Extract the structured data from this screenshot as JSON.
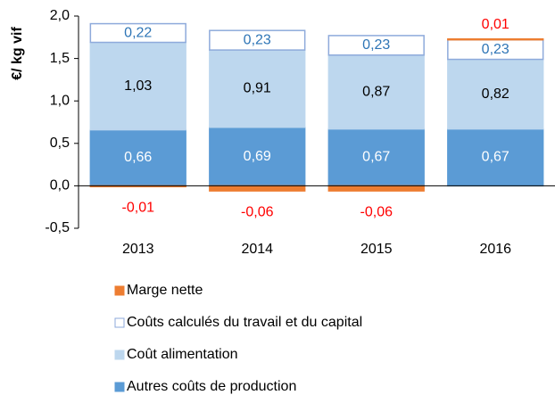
{
  "chart_data": {
    "type": "stacked_bar",
    "y_label": "€/ kg vif",
    "categories": [
      "2013",
      "2014",
      "2015",
      "2016"
    ],
    "ylim": [
      -0.5,
      2.0
    ],
    "yticks": [
      {
        "value": -0.5,
        "label": "-0,5"
      },
      {
        "value": 0,
        "label": "0,0"
      },
      {
        "value": 0.5,
        "label": "0,5"
      },
      {
        "value": 1.0,
        "label": "1,0"
      },
      {
        "value": 1.5,
        "label": "1,5"
      },
      {
        "value": 2.0,
        "label": "2,0"
      }
    ],
    "series": [
      {
        "name": "Autres coûts de production",
        "color": "#5b9bd5",
        "stroke": "#5b9bd5",
        "label_color": "#ffffff",
        "values": [
          0.66,
          0.69,
          0.67,
          0.67
        ],
        "value_labels": [
          "0,66",
          "0,69",
          "0,67",
          "0,67"
        ]
      },
      {
        "name": "Coût alimentation",
        "color": "#bdd7ee",
        "stroke": "#bdd7ee",
        "label_color": "#000000",
        "values": [
          1.03,
          0.91,
          0.87,
          0.82
        ],
        "value_labels": [
          "1,03",
          "0,91",
          "0,87",
          "0,82"
        ]
      },
      {
        "name": "Coûts calculés du travail et du capital",
        "color": "#ffffff",
        "stroke": "#8eaadb",
        "label_color": "#2e75b6",
        "values": [
          0.22,
          0.23,
          0.23,
          0.23
        ],
        "value_labels": [
          "0,22",
          "0,23",
          "0,23",
          "0,23"
        ]
      },
      {
        "name": "Marge nette",
        "color": "#ed7d31",
        "stroke": "#ed7d31",
        "label_color": "#ff0000",
        "values": [
          -0.01,
          -0.06,
          -0.06,
          0.01
        ],
        "value_labels": [
          "-0,01",
          "-0,06",
          "-0,06",
          "0,01"
        ]
      }
    ]
  }
}
